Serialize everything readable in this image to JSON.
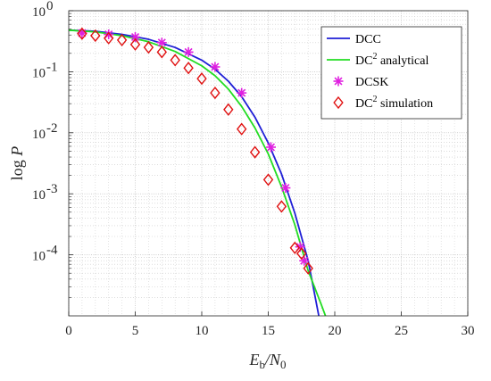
{
  "chart_data": {
    "type": "line",
    "xlabel": {
      "main": "E",
      "sub1": "b",
      "mid": "/N",
      "sub2": "0"
    },
    "ylabel": {
      "pre": "log ",
      "var": "P"
    },
    "xlim": [
      0,
      30
    ],
    "ylim": [
      1e-05,
      1
    ],
    "yscale": "log",
    "grid": true,
    "minor_grid": true,
    "legend_position": "top-right",
    "x_ticks": [
      "0",
      "5",
      "10",
      "15",
      "20",
      "25",
      "30"
    ],
    "y_ticks": [
      {
        "base": "10",
        "exp": "0",
        "value": 1
      },
      {
        "base": "10",
        "exp": "-1",
        "value": 0.1
      },
      {
        "base": "10",
        "exp": "-2",
        "value": 0.01
      },
      {
        "base": "10",
        "exp": "-3",
        "value": 0.001
      },
      {
        "base": "10",
        "exp": "-4",
        "value": 0.0001
      }
    ],
    "series": [
      {
        "name": "DCC",
        "legend": {
          "main": "DCC",
          "sup": "",
          "rest": ""
        },
        "kind": "line",
        "color": "#1f1fd6",
        "x": [
          0,
          2,
          4,
          6,
          8,
          10,
          11,
          12,
          13,
          14,
          15,
          16,
          17,
          18,
          18.8
        ],
        "y": [
          0.48,
          0.46,
          0.41,
          0.34,
          0.25,
          0.155,
          0.11,
          0.07,
          0.039,
          0.018,
          0.0068,
          0.0021,
          0.00048,
          8e-05,
          1e-05
        ]
      },
      {
        "name": "DC² analytical",
        "legend": {
          "main": "DC",
          "sup": "2",
          "rest": " analytical"
        },
        "kind": "line",
        "color": "#22dd22",
        "x": [
          0,
          2,
          4,
          6,
          8,
          10,
          11,
          12,
          13,
          14,
          15,
          16,
          17,
          18,
          19,
          19.3
        ],
        "y": [
          0.48,
          0.45,
          0.39,
          0.31,
          0.215,
          0.125,
          0.086,
          0.052,
          0.027,
          0.012,
          0.0045,
          0.0013,
          0.00031,
          5.5e-05,
          1.5e-05,
          1e-05
        ]
      },
      {
        "name": "DCSK",
        "legend": {
          "main": "DCSK",
          "sup": "",
          "rest": ""
        },
        "kind": "marker-star",
        "color": "#e020e0",
        "x": [
          1,
          3,
          5,
          7,
          9,
          11,
          13,
          15.2,
          16.3,
          17.4,
          17.7
        ],
        "y": [
          0.43,
          0.41,
          0.37,
          0.3,
          0.21,
          0.12,
          0.045,
          0.0058,
          0.00125,
          0.000135,
          8e-05
        ]
      },
      {
        "name": "DC² simulation",
        "legend": {
          "main": "DC",
          "sup": "2",
          "rest": " simulation"
        },
        "kind": "marker-diamond",
        "color": "#e01010",
        "x": [
          1,
          2,
          3,
          4,
          5,
          6,
          7,
          8,
          9,
          10,
          11,
          12,
          13,
          14,
          15,
          16,
          17,
          17.5,
          18
        ],
        "y": [
          0.42,
          0.39,
          0.355,
          0.33,
          0.28,
          0.25,
          0.21,
          0.155,
          0.115,
          0.077,
          0.045,
          0.024,
          0.0115,
          0.0048,
          0.0017,
          0.00062,
          0.00013,
          0.000105,
          6e-05
        ]
      }
    ]
  }
}
